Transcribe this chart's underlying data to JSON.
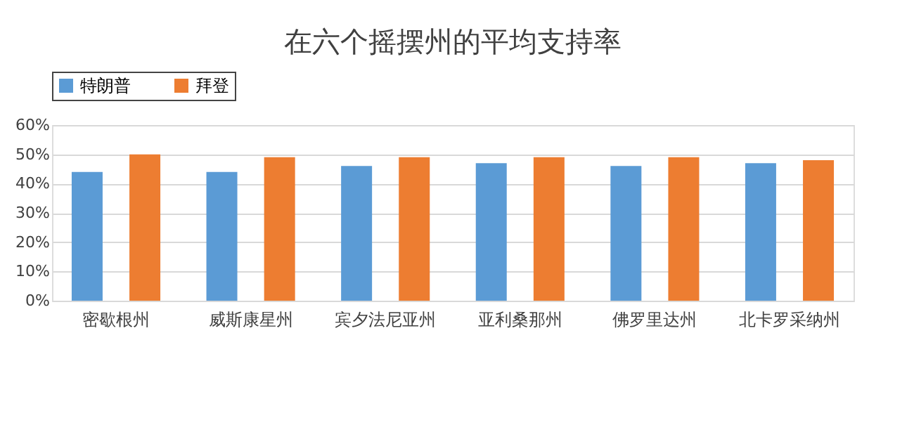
{
  "chart_data": {
    "type": "bar",
    "title": "在六个摇摆州的平均支持率",
    "categories": [
      "密歇根州",
      "威斯康星州",
      "宾夕法尼亚州",
      "亚利桑那州",
      "佛罗里达州",
      "北卡罗采纳州"
    ],
    "series": [
      {
        "name": "特朗普",
        "color": "#5b9bd5",
        "values": [
          44,
          44,
          46,
          47,
          46,
          47
        ]
      },
      {
        "name": "拜登",
        "color": "#ed7d31",
        "values": [
          50,
          49,
          49,
          49,
          49,
          48
        ]
      }
    ],
    "ylim": [
      0,
      60
    ],
    "yticks": [
      {
        "value": 0,
        "label": "0%"
      },
      {
        "value": 10,
        "label": "10%"
      },
      {
        "value": 20,
        "label": "20%"
      },
      {
        "value": 30,
        "label": "30%"
      },
      {
        "value": 40,
        "label": "40%"
      },
      {
        "value": 50,
        "label": "50%"
      },
      {
        "value": 60,
        "label": "60%"
      }
    ],
    "grid": "y",
    "legend": "top"
  }
}
